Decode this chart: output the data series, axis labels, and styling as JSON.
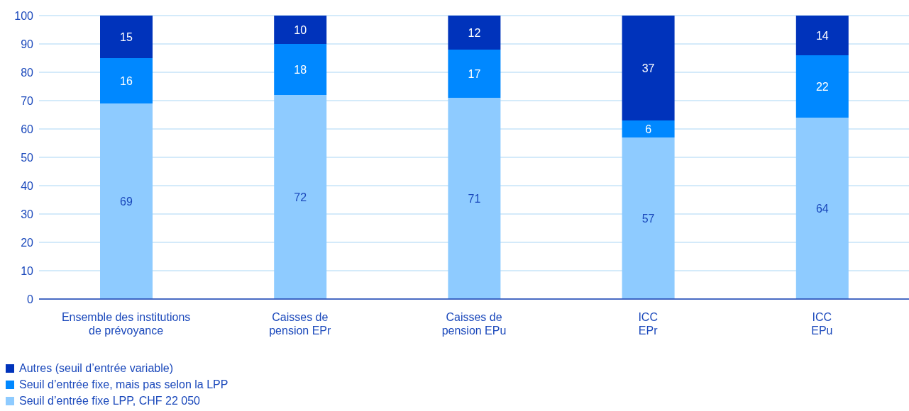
{
  "chart_data": {
    "type": "bar",
    "stacked": true,
    "categories": [
      "Ensemble des institutions\nde prévoyance",
      "Caisses de\npension EPr",
      "Caisses de\npension EPu",
      "ICC\nEPr",
      "ICC\nEPu"
    ],
    "series": [
      {
        "name": "Seuil d’entrée fixe LPP, CHF 22 050",
        "color": "#8ecbff",
        "values": [
          69,
          72,
          71,
          57,
          64
        ]
      },
      {
        "name": "Seuil d’entrée fixe, mais pas selon la LPP",
        "color": "#0088ff",
        "values": [
          16,
          18,
          17,
          6,
          22
        ]
      },
      {
        "name": "Autres (seuil d’entrée variable)",
        "color": "#0033bb",
        "values": [
          15,
          10,
          12,
          37,
          14
        ]
      }
    ],
    "ylim": [
      0,
      100
    ],
    "yticks": [
      0,
      10,
      20,
      30,
      40,
      50,
      60,
      70,
      80,
      90,
      100
    ],
    "grid": "y",
    "legend": "bottom left",
    "data_labels": true
  }
}
